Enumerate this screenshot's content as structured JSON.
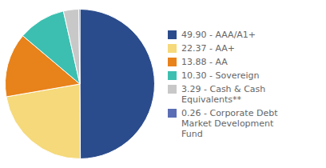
{
  "chart_data": {
    "type": "pie",
    "categories": [
      "49.90 - AAA/A1+",
      "22.37 - AA+",
      "13.88 - AA",
      "10.30 - Sovereign",
      "3.29 - Cash & Cash\nEquivalents**",
      "0.26 - Corporate Debt\nMarket Development\nFund"
    ],
    "values": [
      49.9,
      22.37,
      13.88,
      10.3,
      3.29,
      0.26
    ],
    "colors": [
      "#2b4c8c",
      "#f5d97a",
      "#e8821a",
      "#3cbfb0",
      "#c8c8c8",
      "#5b6db5"
    ],
    "legend": "right"
  }
}
